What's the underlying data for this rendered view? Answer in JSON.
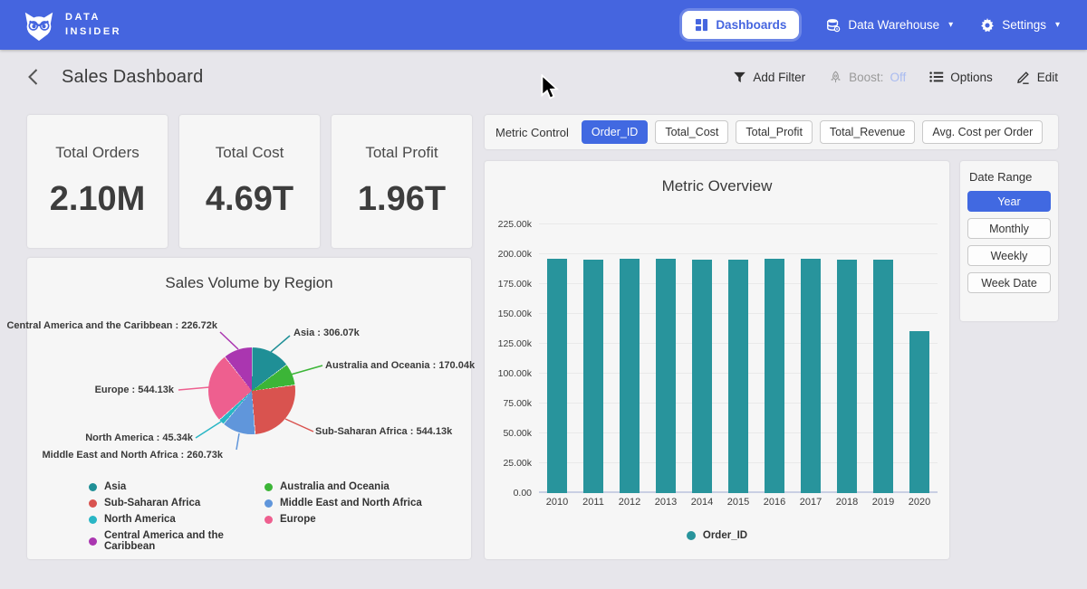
{
  "theme": {
    "nav_blue": "#4565df",
    "accent_blue": "#4169e1",
    "boost_off_color": "#a9bbf0",
    "bar_teal": "#28949c"
  },
  "nav": {
    "brand": {
      "line1": "DATA",
      "line2": "INSIDER"
    },
    "items": [
      {
        "label": "Dashboards",
        "icon": "dashboard-icon",
        "active": true
      },
      {
        "label": "Data Warehouse",
        "icon": "database-icon",
        "dropdown": true
      },
      {
        "label": "Settings",
        "icon": "gear-icon",
        "dropdown": true
      }
    ]
  },
  "header": {
    "title": "Sales Dashboard",
    "actions": {
      "add_filter": "Add Filter",
      "boost_label": "Boost:",
      "boost_value": "Off",
      "options": "Options",
      "edit": "Edit"
    }
  },
  "kpis": [
    {
      "label": "Total Orders",
      "value": "2.10M"
    },
    {
      "label": "Total Cost",
      "value": "4.69T"
    },
    {
      "label": "Total Profit",
      "value": "1.96T"
    }
  ],
  "metric_control": {
    "label": "Metric Control",
    "options": [
      "Order_ID",
      "Total_Cost",
      "Total_Profit",
      "Total_Revenue",
      "Avg. Cost per Order"
    ],
    "selected": "Order_ID"
  },
  "date_range": {
    "label": "Date Range",
    "options": [
      "Year",
      "Monthly",
      "Weekly",
      "Week Date"
    ],
    "selected": "Year"
  },
  "chart_data": [
    {
      "type": "bar",
      "title": "Metric Overview",
      "categories": [
        "2010",
        "2011",
        "2012",
        "2013",
        "2014",
        "2015",
        "2016",
        "2017",
        "2018",
        "2019",
        "2020"
      ],
      "series": [
        {
          "name": "Order_ID",
          "color": "#28949c",
          "values": [
            195.9,
            195.8,
            196.3,
            195.9,
            195.7,
            195.8,
            196.4,
            195.9,
            195.8,
            195.8,
            135.8
          ]
        }
      ],
      "unit": "k",
      "ylim": [
        0,
        225
      ],
      "ytick_step": 25,
      "yticks": [
        "225.00k",
        "200.00k",
        "175.00k",
        "150.00k",
        "125.00k",
        "100.00k",
        "75.00k",
        "50.00k",
        "25.00k",
        "0.00"
      ],
      "grid": true,
      "legend_position": "bottom"
    },
    {
      "type": "pie",
      "title": "Sales Volume by Region",
      "unit": "k",
      "slices": [
        {
          "name": "Asia",
          "value": 306.07,
          "label": "Asia : 306.07k",
          "color": "#1f8f96"
        },
        {
          "name": "Australia and Oceania",
          "value": 170.04,
          "label": "Australia and Oceania : 170.04k",
          "color": "#3cb537"
        },
        {
          "name": "Sub-Saharan Africa",
          "value": 544.13,
          "label": "Sub-Saharan Africa : 544.13k",
          "color": "#d9534f"
        },
        {
          "name": "Middle East and North Africa",
          "value": 260.73,
          "label": "Middle East and North Africa : 260.73k",
          "color": "#6096db"
        },
        {
          "name": "North America",
          "value": 45.34,
          "label": "North America : 45.34k",
          "color": "#29b6c5"
        },
        {
          "name": "Europe",
          "value": 544.13,
          "label": "Europe : 544.13k",
          "color": "#ee5f8f"
        },
        {
          "name": "Central America and the Caribbean",
          "value": 226.72,
          "label": "Central America and the Caribbean : 226.72k",
          "color": "#aa36b0"
        }
      ],
      "legend_position": "bottom"
    }
  ]
}
